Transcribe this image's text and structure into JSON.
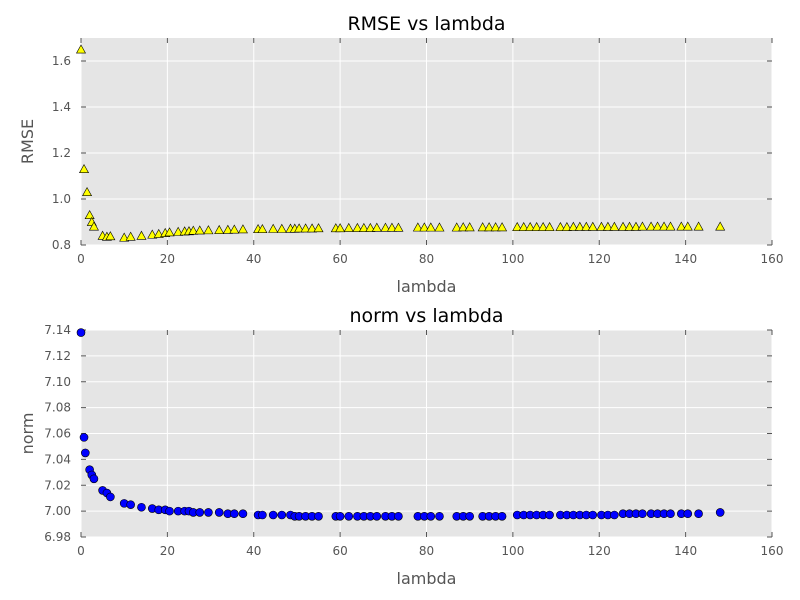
{
  "chart_data": [
    {
      "type": "scatter",
      "title": "RMSE vs lambda",
      "xlabel": "lambda",
      "ylabel": "RMSE",
      "xlim": [
        0,
        160
      ],
      "ylim": [
        0.8,
        1.7
      ],
      "xticks": [
        0,
        20,
        40,
        60,
        80,
        100,
        120,
        140,
        160
      ],
      "yticks": [
        0.8,
        1.0,
        1.2,
        1.4,
        1.6
      ],
      "ytick_labels": [
        "0.8",
        "1.0",
        "1.2",
        "1.4",
        "1.6"
      ],
      "grid": true,
      "marker": "triangle",
      "marker_color": "#ffff00",
      "series": [
        {
          "x": [
            0.0,
            0.7,
            1.4,
            2.0,
            2.5,
            3.0,
            5.0,
            6.0,
            6.8,
            10.0,
            11.5,
            14.0,
            16.5,
            18.0,
            19.5,
            20.5,
            22.5,
            24.0,
            25.0,
            26.0,
            27.5,
            29.5,
            32.0,
            34.0,
            35.5,
            37.5,
            41.0,
            42.0,
            44.5,
            46.5,
            48.5,
            49.5,
            50.5,
            52.0,
            53.5,
            55.0,
            59.0,
            60.0,
            62.0,
            64.0,
            65.5,
            67.0,
            68.5,
            70.5,
            72.0,
            73.5,
            78.0,
            79.5,
            81.0,
            83.0,
            87.0,
            88.5,
            90.0,
            93.0,
            94.5,
            96.0,
            97.5,
            101.0,
            102.5,
            104.0,
            105.5,
            107.0,
            108.5,
            111.0,
            112.5,
            114.0,
            115.5,
            117.0,
            118.5,
            120.5,
            122.0,
            123.5,
            125.5,
            127.0,
            128.5,
            130.0,
            132.0,
            133.5,
            135.0,
            136.5,
            139.0,
            140.5,
            143.0,
            148.0
          ],
          "y": [
            1.65,
            1.13,
            1.03,
            0.93,
            0.9,
            0.88,
            0.84,
            0.836,
            0.838,
            0.832,
            0.836,
            0.84,
            0.845,
            0.848,
            0.852,
            0.855,
            0.857,
            0.859,
            0.86,
            0.862,
            0.863,
            0.864,
            0.865,
            0.866,
            0.867,
            0.868,
            0.869,
            0.869,
            0.87,
            0.87,
            0.871,
            0.871,
            0.872,
            0.872,
            0.872,
            0.873,
            0.873,
            0.873,
            0.874,
            0.874,
            0.874,
            0.874,
            0.875,
            0.875,
            0.875,
            0.875,
            0.876,
            0.876,
            0.876,
            0.876,
            0.876,
            0.877,
            0.877,
            0.877,
            0.877,
            0.877,
            0.877,
            0.878,
            0.878,
            0.878,
            0.878,
            0.878,
            0.878,
            0.878,
            0.878,
            0.879,
            0.879,
            0.879,
            0.879,
            0.879,
            0.879,
            0.879,
            0.879,
            0.879,
            0.879,
            0.88,
            0.88,
            0.88,
            0.88,
            0.88,
            0.88,
            0.88,
            0.88,
            0.88
          ]
        }
      ]
    },
    {
      "type": "scatter",
      "title": "norm vs lambda",
      "xlabel": "lambda",
      "ylabel": "norm",
      "xlim": [
        0,
        160
      ],
      "ylim": [
        6.98,
        7.14
      ],
      "xticks": [
        0,
        20,
        40,
        60,
        80,
        100,
        120,
        140,
        160
      ],
      "yticks": [
        6.98,
        7.0,
        7.02,
        7.04,
        7.06,
        7.08,
        7.1,
        7.12,
        7.14
      ],
      "ytick_labels": [
        "6.98",
        "7.00",
        "7.02",
        "7.04",
        "7.06",
        "7.08",
        "7.10",
        "7.12",
        "7.14"
      ],
      "grid": true,
      "marker": "circle",
      "marker_color": "#0000ff",
      "series": [
        {
          "x": [
            0.0,
            0.7,
            1.0,
            2.0,
            2.5,
            3.0,
            5.0,
            6.0,
            6.8,
            10.0,
            11.5,
            14.0,
            16.5,
            18.0,
            19.5,
            20.5,
            22.5,
            24.0,
            25.0,
            26.0,
            27.5,
            29.5,
            32.0,
            34.0,
            35.5,
            37.5,
            41.0,
            42.0,
            44.5,
            46.5,
            48.5,
            49.5,
            50.5,
            52.0,
            53.5,
            55.0,
            59.0,
            60.0,
            62.0,
            64.0,
            65.5,
            67.0,
            68.5,
            70.5,
            72.0,
            73.5,
            78.0,
            79.5,
            81.0,
            83.0,
            87.0,
            88.5,
            90.0,
            93.0,
            94.5,
            96.0,
            97.5,
            101.0,
            102.5,
            104.0,
            105.5,
            107.0,
            108.5,
            111.0,
            112.5,
            114.0,
            115.5,
            117.0,
            118.5,
            120.5,
            122.0,
            123.5,
            125.5,
            127.0,
            128.5,
            130.0,
            132.0,
            133.5,
            135.0,
            136.5,
            139.0,
            140.5,
            143.0,
            148.0
          ],
          "y": [
            7.138,
            7.057,
            7.045,
            7.032,
            7.028,
            7.025,
            7.016,
            7.014,
            7.011,
            7.006,
            7.005,
            7.003,
            7.002,
            7.001,
            7.001,
            7.0,
            7.0,
            7.0,
            7.0,
            6.999,
            6.999,
            6.999,
            6.999,
            6.998,
            6.998,
            6.998,
            6.997,
            6.997,
            6.997,
            6.997,
            6.997,
            6.996,
            6.996,
            6.996,
            6.996,
            6.996,
            6.996,
            6.996,
            6.996,
            6.996,
            6.996,
            6.996,
            6.996,
            6.996,
            6.996,
            6.996,
            6.996,
            6.996,
            6.996,
            6.996,
            6.996,
            6.996,
            6.996,
            6.996,
            6.996,
            6.996,
            6.996,
            6.997,
            6.997,
            6.997,
            6.997,
            6.997,
            6.997,
            6.997,
            6.997,
            6.997,
            6.997,
            6.997,
            6.997,
            6.997,
            6.997,
            6.997,
            6.998,
            6.998,
            6.998,
            6.998,
            6.998,
            6.998,
            6.998,
            6.998,
            6.998,
            6.998,
            6.998,
            6.999
          ]
        }
      ]
    }
  ]
}
